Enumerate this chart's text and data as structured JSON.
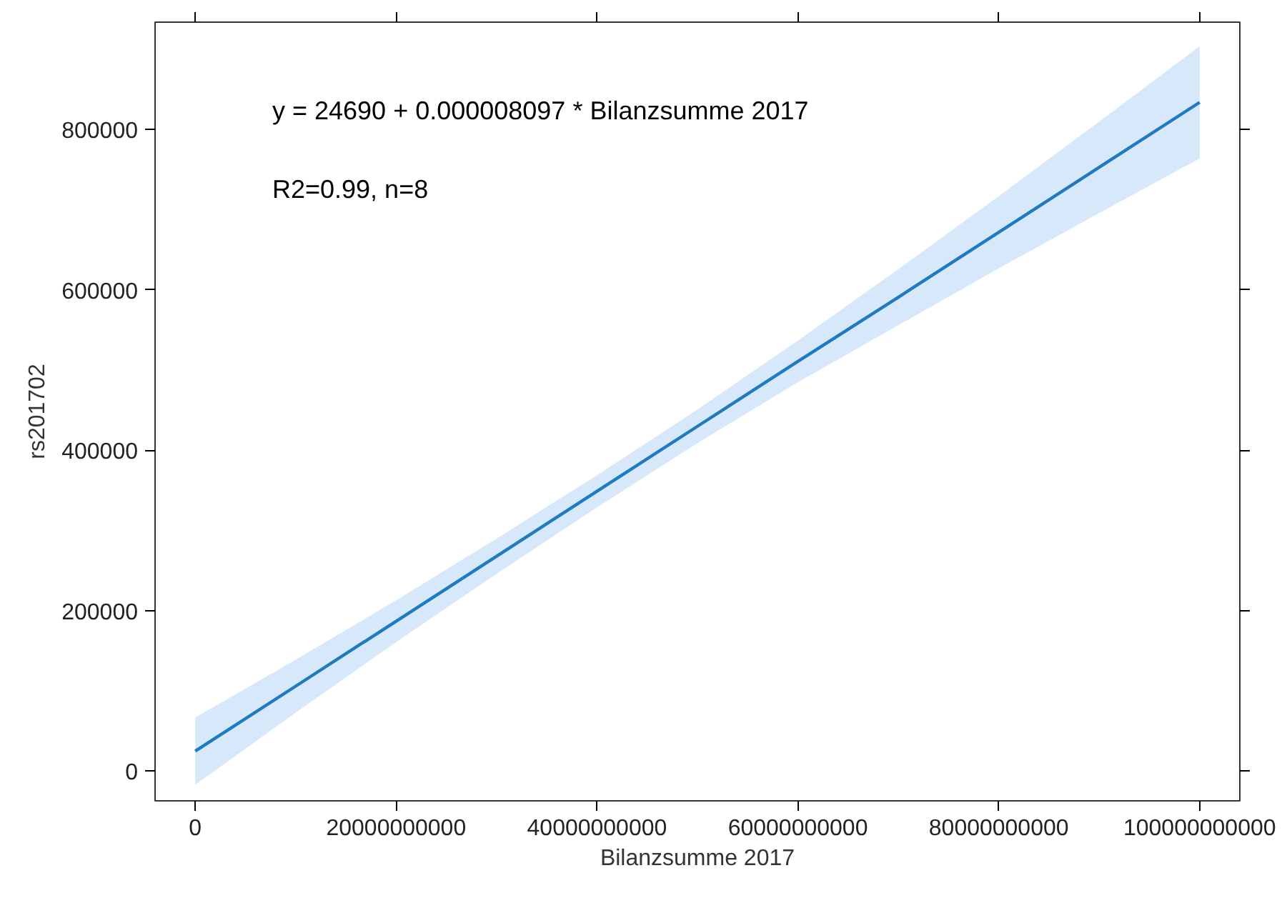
{
  "chart_data": {
    "type": "line",
    "xlabel": "Bilanzsumme 2017",
    "ylabel": "rs201702",
    "annotations": [
      "y = 24690 + 0.000008097 * Bilanzsumme 2017",
      "R2=0.99, n=8"
    ],
    "x": [
      0,
      10000000000,
      20000000000,
      30000000000,
      40000000000,
      50000000000,
      60000000000,
      70000000000,
      80000000000,
      90000000000,
      100000000000
    ],
    "series": [
      {
        "color": "#1f7bbf",
        "values": [
          25000,
          106000,
          187000,
          268000,
          349000,
          430000,
          511000,
          591000,
          672000,
          753000,
          834000
        ],
        "lower": [
          -17000,
          73000,
          161000,
          246000,
          329000,
          409000,
          485000,
          556000,
          627000,
          696000,
          764000
        ],
        "upper": [
          67000,
          139000,
          213000,
          290000,
          369000,
          451000,
          537000,
          626000,
          717000,
          810000,
          904000
        ]
      }
    ],
    "xlim": [
      -4000000000,
      104000000000
    ],
    "ylim": [
      -37000,
      934000
    ],
    "xticks": [
      0,
      20000000000,
      40000000000,
      60000000000,
      80000000000,
      100000000000
    ],
    "yticks": [
      0,
      200000,
      400000,
      600000,
      800000
    ],
    "grid": false,
    "line_style": "solid",
    "marker": "none"
  }
}
